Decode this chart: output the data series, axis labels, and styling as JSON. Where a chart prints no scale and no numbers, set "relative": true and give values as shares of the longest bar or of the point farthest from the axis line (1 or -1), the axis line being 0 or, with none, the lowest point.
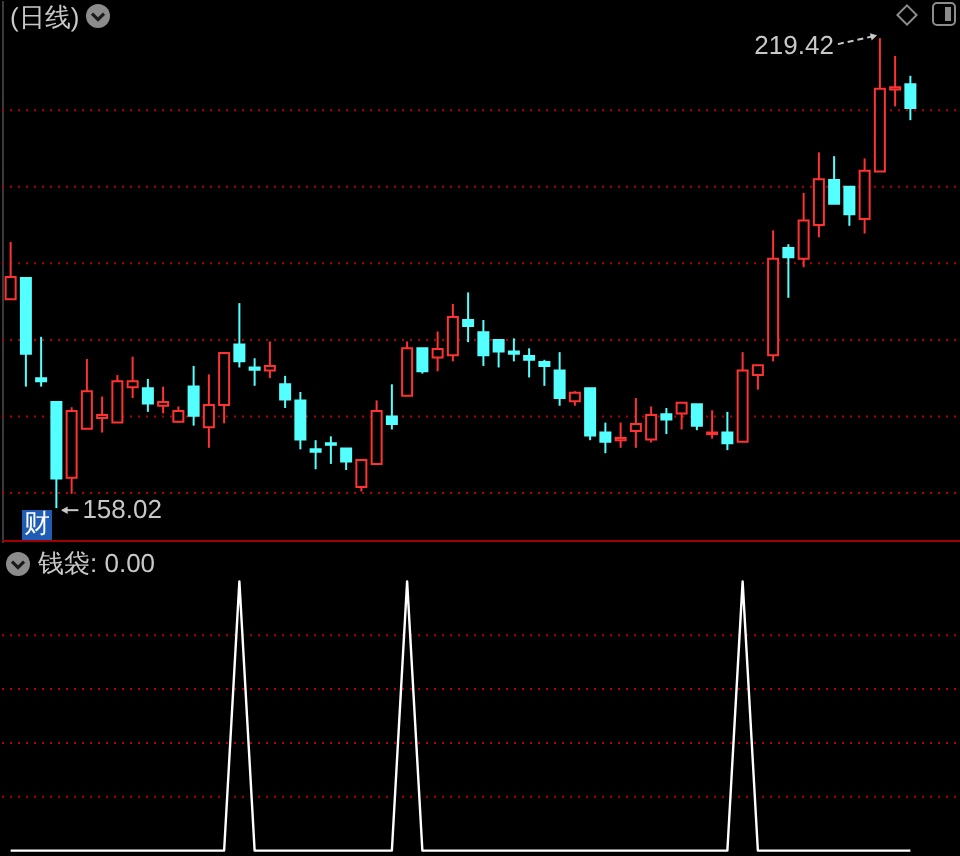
{
  "chart_data": [
    {
      "type": "candlestick",
      "title": "(日线)",
      "categories": [
        null,
        null,
        null,
        null,
        null,
        null,
        null,
        null,
        null,
        null,
        null,
        null,
        null,
        null,
        null,
        null,
        null,
        null,
        null,
        null,
        null,
        null,
        null,
        null,
        null,
        null,
        null,
        null,
        null,
        null,
        null,
        null,
        null,
        null,
        null,
        null,
        null,
        null,
        null,
        null,
        null,
        null,
        null,
        null,
        null,
        null,
        null,
        null,
        null,
        null,
        null,
        null,
        null,
        null,
        null,
        null,
        null,
        null,
        null,
        null
      ],
      "ohlc": [
        [
          185.3,
          192.8,
          185.3,
          188.2
        ],
        [
          188.1,
          188.1,
          173.9,
          178.2
        ],
        [
          175.0,
          180.4,
          173.9,
          174.6
        ],
        [
          171.9,
          171.9,
          158.02,
          161.9
        ],
        [
          162.0,
          171.2,
          159.9,
          170.7
        ],
        [
          168.4,
          177.5,
          168.4,
          173.3
        ],
        [
          169.8,
          172.6,
          167.9,
          170.2
        ],
        [
          169.2,
          175.4,
          169.2,
          174.6
        ],
        [
          173.8,
          177.8,
          172.4,
          174.6
        ],
        [
          173.7,
          174.9,
          170.6,
          171.7
        ],
        [
          171.4,
          173.9,
          170.4,
          171.9
        ],
        [
          169.3,
          171.3,
          169.2,
          170.7
        ],
        [
          173.9,
          176.6,
          168.8,
          170.1
        ],
        [
          168.6,
          175.5,
          165.9,
          171.5
        ],
        [
          171.5,
          178.3,
          169.1,
          178.3
        ],
        [
          179.4,
          184.8,
          176.4,
          177.2
        ],
        [
          176.4,
          177.6,
          174.0,
          176.1
        ],
        [
          176.0,
          179.8,
          175.0,
          176.6
        ],
        [
          174.2,
          175.3,
          171.1,
          172.2
        ],
        [
          172.1,
          173.2,
          165.7,
          167.0
        ],
        [
          165.7,
          166.9,
          163.1,
          165.4
        ],
        [
          166.5,
          167.4,
          163.8,
          166.3
        ],
        [
          165.8,
          165.8,
          163.0,
          164.1
        ],
        [
          160.8,
          164.3,
          160.2,
          164.3
        ],
        [
          163.8,
          172.1,
          163.8,
          170.7
        ],
        [
          170.0,
          174.2,
          168.3,
          169.0
        ],
        [
          172.7,
          179.8,
          172.7,
          178.9
        ],
        [
          178.9,
          178.9,
          175.6,
          175.9
        ],
        [
          177.7,
          181.1,
          175.9,
          178.8
        ],
        [
          178.0,
          184.7,
          177.2,
          183.0
        ],
        [
          182.6,
          186.2,
          179.7,
          181.8
        ],
        [
          181.0,
          182.6,
          176.6,
          178.0
        ],
        [
          180.0,
          180.0,
          176.4,
          178.5
        ],
        [
          178.5,
          180.2,
          177.2,
          178.2
        ],
        [
          177.9,
          178.9,
          175.1,
          177.4
        ],
        [
          177.1,
          177.4,
          174.0,
          176.6
        ],
        [
          176.0,
          178.4,
          171.4,
          172.4
        ],
        [
          172.0,
          173.3,
          171.4,
          173.1
        ],
        [
          173.7,
          173.7,
          166.9,
          167.5
        ],
        [
          167.9,
          169.2,
          165.2,
          166.7
        ],
        [
          166.9,
          169.2,
          165.9,
          167.2
        ],
        [
          168.1,
          172.4,
          165.9,
          169.0
        ],
        [
          167.0,
          171.3,
          166.6,
          170.2
        ],
        [
          170.3,
          171.1,
          167.7,
          169.6
        ],
        [
          170.4,
          171.8,
          168.3,
          171.8
        ],
        [
          171.6,
          171.6,
          168.2,
          168.8
        ],
        [
          167.7,
          170.8,
          167.1,
          167.9
        ],
        [
          167.9,
          170.6,
          165.6,
          166.5
        ],
        [
          166.7,
          178.4,
          166.7,
          176.0
        ],
        [
          175.4,
          176.7,
          173.5,
          176.7
        ],
        [
          178.0,
          194.3,
          177.2,
          190.6
        ],
        [
          192.0,
          192.5,
          185.5,
          190.8
        ],
        [
          190.6,
          199.2,
          189.5,
          195.6
        ],
        [
          195.0,
          204.5,
          193.4,
          201.0
        ],
        [
          200.9,
          204.0,
          197.8,
          197.8
        ],
        [
          200.0,
          200.0,
          194.9,
          196.4
        ],
        [
          195.8,
          203.7,
          193.9,
          202.1
        ],
        [
          202.0,
          219.42,
          202.0,
          212.8
        ],
        [
          212.7,
          217.1,
          210.5,
          213.0
        ],
        [
          213.4,
          214.5,
          208.7,
          210.3
        ]
      ],
      "colors": [
        "#ff3232",
        "#54ffff",
        "#54ffff",
        "#54ffff",
        "#ff3232",
        "#ff3232",
        "#ff3232",
        "#ff3232",
        "#ff3232",
        "#54ffff",
        "#ff3232",
        "#ff3232",
        "#54ffff",
        "#ff3232",
        "#ff3232",
        "#54ffff",
        "#54ffff",
        "#ff3232",
        "#54ffff",
        "#54ffff",
        "#54ffff",
        "#54ffff",
        "#54ffff",
        "#ff3232",
        "#ff3232",
        "#54ffff",
        "#ff3232",
        "#54ffff",
        "#ff3232",
        "#ff3232",
        "#54ffff",
        "#54ffff",
        "#54ffff",
        "#54ffff",
        "#54ffff",
        "#54ffff",
        "#54ffff",
        "#ff3232",
        "#54ffff",
        "#54ffff",
        "#ff3232",
        "#ff3232",
        "#ff3232",
        "#54ffff",
        "#ff3232",
        "#54ffff",
        "#ff3232",
        "#54ffff",
        "#ff3232",
        "#ff3232",
        "#ff3232",
        "#54ffff",
        "#ff3232",
        "#ff3232",
        "#54ffff",
        "#54ffff",
        "#ff3232",
        "#ff3232",
        "#ff3232",
        "#54ffff"
      ],
      "value_labels": [
        null,
        null,
        null,
        "158.02",
        null,
        null,
        null,
        null,
        null,
        null,
        null,
        null,
        null,
        null,
        null,
        null,
        null,
        null,
        null,
        null,
        null,
        null,
        null,
        null,
        null,
        null,
        null,
        null,
        null,
        null,
        null,
        null,
        null,
        null,
        null,
        null,
        null,
        null,
        null,
        null,
        null,
        null,
        null,
        null,
        null,
        null,
        null,
        null,
        null,
        null,
        null,
        null,
        null,
        null,
        null,
        null,
        null,
        "219.42",
        null,
        null
      ],
      "ylim": [
        153.6,
        224.4
      ],
      "yticks": [
        160,
        170,
        180,
        190,
        200,
        210
      ],
      "grid": "y",
      "tick_labels": false,
      "annotations": [
        "财"
      ]
    },
    {
      "type": "line",
      "title": "钱袋: 0.00",
      "categories": [
        null,
        null,
        null,
        null,
        null,
        null,
        null,
        null,
        null,
        null,
        null,
        null,
        null,
        null,
        null,
        null,
        null,
        null,
        null,
        null,
        null,
        null,
        null,
        null,
        null,
        null,
        null,
        null,
        null,
        null,
        null,
        null,
        null,
        null,
        null,
        null,
        null,
        null,
        null,
        null,
        null,
        null,
        null,
        null,
        null,
        null,
        null,
        null,
        null,
        null,
        null,
        null,
        null,
        null,
        null,
        null,
        null,
        null,
        null,
        null
      ],
      "series": [
        {
          "color": "#ffffff",
          "values": [
            0,
            0,
            0,
            0,
            0,
            0,
            0,
            0,
            0,
            0,
            0,
            0,
            0,
            0,
            0,
            1,
            0,
            0,
            0,
            0,
            0,
            0,
            0,
            0,
            0,
            0,
            1,
            0,
            0,
            0,
            0,
            0,
            0,
            0,
            0,
            0,
            0,
            0,
            0,
            0,
            0,
            0,
            0,
            0,
            0,
            0,
            0,
            0,
            1,
            0,
            0,
            0,
            0,
            0,
            0,
            0,
            0,
            0,
            0,
            0
          ]
        }
      ],
      "relative": true,
      "ref_lines": [
        {
          "axis": "y",
          "value": 0.2,
          "color": "#b00000",
          "line_style": "dotted"
        },
        {
          "axis": "y",
          "value": 0.4,
          "color": "#b00000",
          "line_style": "dotted"
        },
        {
          "axis": "y",
          "value": 0.6,
          "color": "#b00000",
          "line_style": "dotted"
        },
        {
          "axis": "y",
          "value": 0.8,
          "color": "#b00000",
          "line_style": "dotted"
        }
      ],
      "tick_labels": false
    }
  ]
}
